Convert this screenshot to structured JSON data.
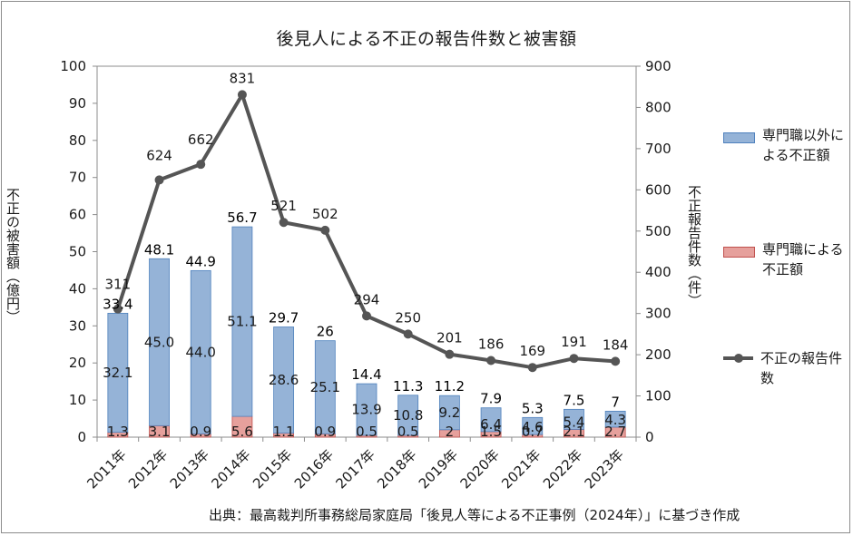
{
  "chart_data": {
    "type": "bar",
    "title": "後見人による不正の報告件数と被害額",
    "categories": [
      "2011年",
      "2012年",
      "2013年",
      "2014年",
      "2015年",
      "2016年",
      "2017年",
      "2018年",
      "2019年",
      "2020年",
      "2021年",
      "2022年",
      "2023年"
    ],
    "ylabel_left": "不正の被害額（億円）",
    "ylabel_right": "不正報告件数（件）",
    "ylim_left": [
      0,
      100
    ],
    "ylim_right": [
      0,
      900
    ],
    "yticks_left": [
      0,
      10,
      20,
      30,
      40,
      50,
      60,
      70,
      80,
      90,
      100
    ],
    "yticks_right": [
      0,
      100,
      200,
      300,
      400,
      500,
      600,
      700,
      800,
      900
    ],
    "stacked": true,
    "series": [
      {
        "name": "専門職による不正額",
        "kind": "bar",
        "axis": "left",
        "color": "#e6a09c",
        "values": [
          1.3,
          3.1,
          0.9,
          5.6,
          1.1,
          0.9,
          0.5,
          0.5,
          2,
          1.5,
          0.7,
          2.1,
          2.7
        ]
      },
      {
        "name": "専門職以外による不正額",
        "kind": "bar",
        "axis": "left",
        "color": "#95b3d7",
        "values": [
          32.1,
          45.0,
          44.0,
          51.1,
          28.6,
          25.1,
          13.9,
          10.8,
          9.2,
          6.4,
          4.6,
          5.4,
          4.3
        ]
      },
      {
        "name": "不正の報告件数",
        "kind": "line",
        "axis": "right",
        "color": "#555555",
        "values": [
          311,
          624,
          662,
          831,
          521,
          502,
          294,
          250,
          201,
          186,
          169,
          191,
          184
        ]
      }
    ],
    "segment_labels_pro": [
      "1.3",
      "3.1",
      "0.9",
      "5.6",
      "1.1",
      "0.9",
      "0.5",
      "0.5",
      "2",
      "1.5",
      "0.7",
      "2.1",
      "2.7"
    ],
    "segment_labels_nonpro": [
      "32.1",
      "45.0",
      "44.0",
      "51.1",
      "28.6",
      "25.1",
      "13.9",
      "10.8",
      "9.2",
      "6.4",
      "4.6",
      "5.4",
      "4.3"
    ],
    "total_labels": [
      "33.4",
      "48.1",
      "44.9",
      "56.7",
      "29.7",
      "26",
      "14.4",
      "11.3",
      "11.2",
      "7.9",
      "5.3",
      "7.5",
      "7"
    ],
    "count_labels": [
      "311",
      "624",
      "662",
      "831",
      "521",
      "502",
      "294",
      "250",
      "201",
      "186",
      "169",
      "191",
      "184"
    ],
    "legend": [
      {
        "label": "専門職以外による不正額",
        "color": "#95b3d7",
        "type": "bar"
      },
      {
        "label": "専門職による不正額",
        "color": "#e6a09c",
        "type": "bar"
      },
      {
        "label": "不正の報告件数",
        "color": "#555555",
        "type": "line"
      }
    ],
    "legend_position": "right",
    "source": "出典：最高裁判所事務総局家庭局「後見人等による不正事例（2024年）」に基づき作成"
  }
}
